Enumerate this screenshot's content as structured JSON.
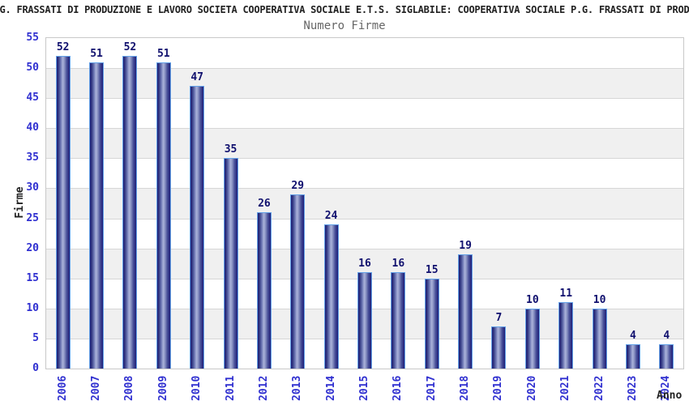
{
  "header": {
    "title": "G. FRASSATI DI PRODUZIONE E LAVORO SOCIETA COOPERATIVA SOCIALE E.T.S. SIGLABILE: COOPERATIVA SOCIALE P.G. FRASSATI DI PROD",
    "subtitle": "Numero Firme"
  },
  "chart_data": {
    "type": "bar",
    "title": "Numero Firme",
    "xlabel": "Anno",
    "ylabel": "Firme",
    "categories": [
      "2006",
      "2007",
      "2008",
      "2009",
      "2010",
      "2011",
      "2012",
      "2013",
      "2014",
      "2015",
      "2016",
      "2017",
      "2018",
      "2019",
      "2020",
      "2021",
      "2022",
      "2023",
      "2024"
    ],
    "values": [
      52,
      51,
      52,
      51,
      47,
      35,
      26,
      29,
      24,
      16,
      16,
      15,
      19,
      7,
      10,
      11,
      10,
      4,
      4
    ],
    "ylim": [
      0,
      55
    ],
    "ytick_step": 5,
    "grid": true,
    "legend_position": "none",
    "band_rows": "alternating gray every 5 units"
  },
  "colors": {
    "tick_label": "#3030d0",
    "value_label": "#10106e",
    "bar_border": "#64a2e8",
    "bar_dark": "#1e1e78",
    "bar_light": "#aab2da",
    "band": "#f0f0f0",
    "gridline": "#d6d6d6",
    "plot_border": "#c8c8c8",
    "title_text": "#222222",
    "subtitle_text": "#666666"
  }
}
